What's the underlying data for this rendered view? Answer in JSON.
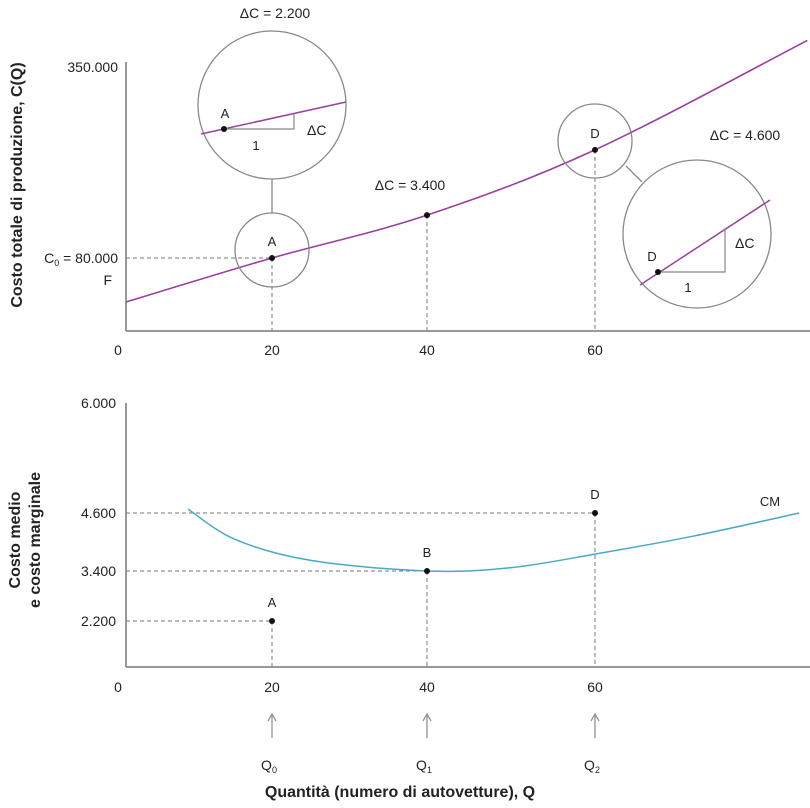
{
  "chart_data": [
    {
      "type": "line",
      "ylabel": "Costo totale di produzione, C(Q)",
      "x_ticks": [
        "0",
        "20",
        "40",
        "60"
      ],
      "y_ticks": [
        "350.000"
      ],
      "y_annotations": {
        "c0": "C₀ = 80.000",
        "c0_main": "C",
        "c0_sub": "0",
        "c0_rest": " = 80.000",
        "f": "F"
      },
      "series": [
        {
          "color": "#9b3fa0",
          "points": [
            [
              0,
              48000
            ],
            [
              20,
              80000
            ],
            [
              40,
              139000
            ],
            [
              60,
              229000
            ],
            [
              86,
              380000
            ]
          ]
        }
      ],
      "points": [
        {
          "label": "A",
          "x": 20,
          "y": 80000
        },
        {
          "label": "",
          "x": 40,
          "y": 139000
        },
        {
          "label": "D",
          "x": 60,
          "y": 229000
        }
      ],
      "annotations": {
        "dc_a": "ΔC = 2.200",
        "dc_b": "ΔC = 3.400",
        "dc_d": "ΔC = 4.600",
        "inset_dc": "ΔC",
        "inset_one": "1",
        "inset_a": "A",
        "inset_d": "D"
      }
    },
    {
      "type": "line",
      "ylabel_line1": "Costo medio",
      "ylabel_line2": "e costo marginale",
      "x_ticks": [
        "0",
        "20",
        "40",
        "60"
      ],
      "y_ticks": [
        "6.000",
        "4.600",
        "3.400",
        "2.200"
      ],
      "series": [
        {
          "name": "CM",
          "color": "#4aa8c8",
          "points": [
            [
              8.5,
              4650
            ],
            [
              15,
              4050
            ],
            [
              25,
              3620
            ],
            [
              40,
              3400
            ],
            [
              50,
              3470
            ],
            [
              60,
              3750
            ],
            [
              72,
              4120
            ],
            [
              85,
              4600
            ]
          ]
        }
      ],
      "points": [
        {
          "label": "A",
          "x": 20,
          "y": 2200
        },
        {
          "label": "B",
          "x": 40,
          "y": 3400
        },
        {
          "label": "D",
          "x": 60,
          "y": 4600
        }
      ],
      "q_labels": [
        {
          "main": "Q",
          "sub": "0"
        },
        {
          "main": "Q",
          "sub": "1"
        },
        {
          "main": "Q",
          "sub": "2"
        }
      ],
      "xlabel": "Quantità (numero di autovetture), Q"
    }
  ]
}
